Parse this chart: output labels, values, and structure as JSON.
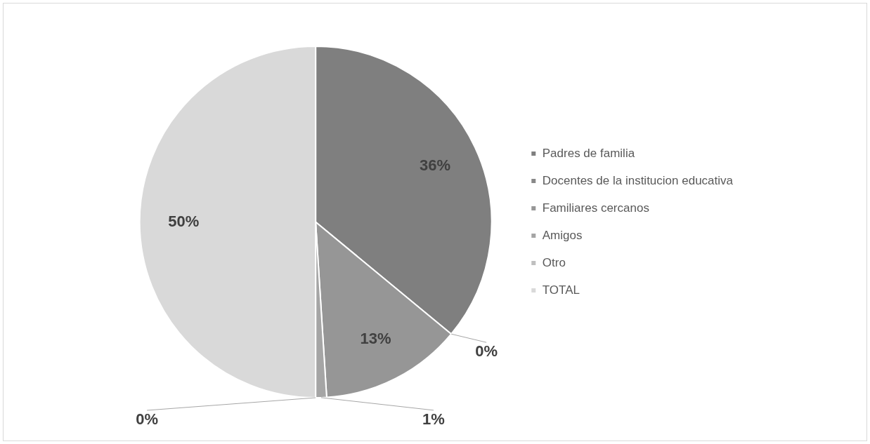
{
  "chart_data": {
    "type": "pie",
    "categories": [
      "Padres de familia",
      "Docentes de la institucion educativa",
      "Familiares cercanos",
      "Amigos",
      "Otro",
      "TOTAL"
    ],
    "values": [
      36,
      0,
      13,
      1,
      0,
      50
    ],
    "colors": [
      "#7f7f7f",
      "#888888",
      "#969696",
      "#a5a5a5",
      "#bfbfbf",
      "#d9d9d9"
    ],
    "value_labels": [
      "36%",
      "0%",
      "13%",
      "1%",
      "0%",
      "50%"
    ],
    "legend": "right"
  }
}
